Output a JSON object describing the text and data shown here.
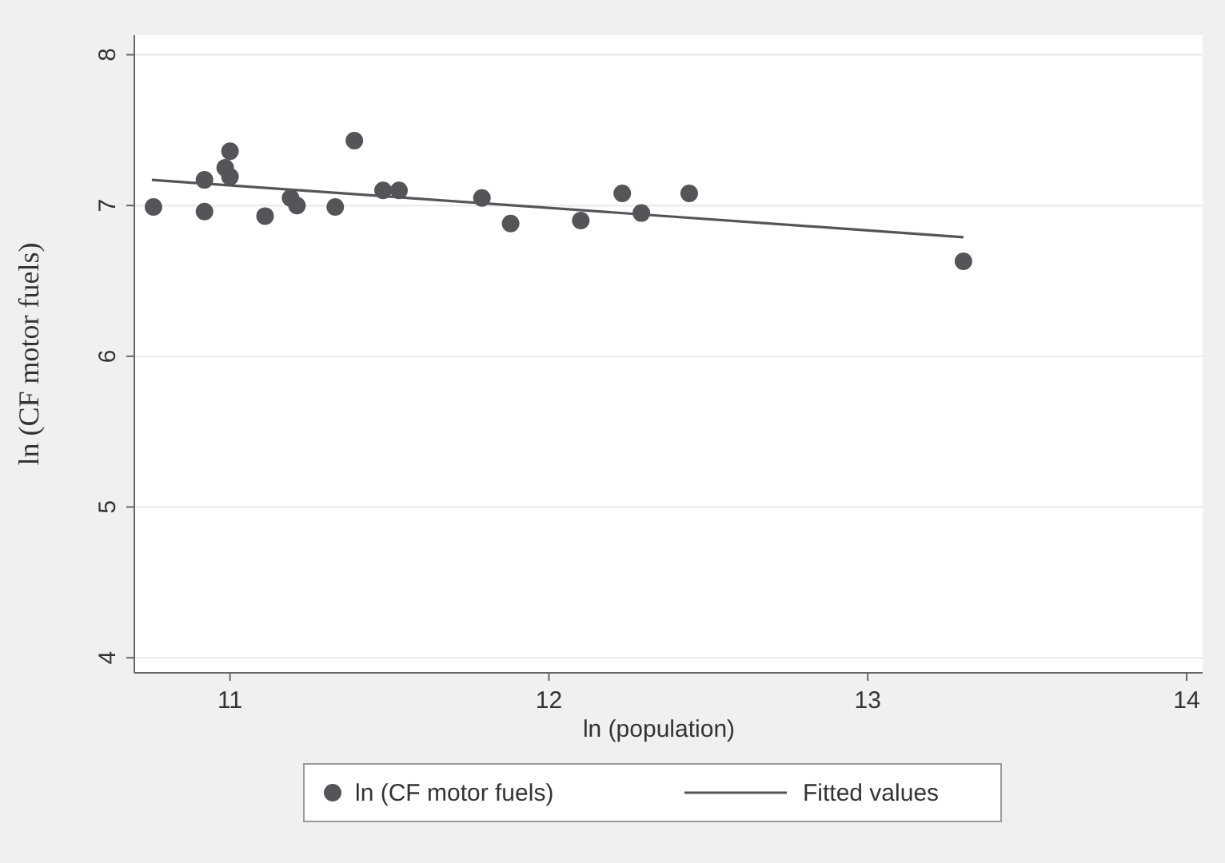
{
  "chart_data": {
    "type": "scatter",
    "xlabel": "ln (population)",
    "ylabel": "ln (CF motor fuels)",
    "xlim": [
      10.7,
      14.05
    ],
    "ylim": [
      3.9,
      8.13
    ],
    "xticks": [
      11,
      12,
      13,
      14
    ],
    "yticks": [
      4,
      5,
      6,
      7,
      8
    ],
    "grid": "y",
    "legend": "bottom",
    "marker": "circle",
    "series": [
      {
        "name": "ln (CF motor fuels)",
        "color": "#555559",
        "x": [
          10.76,
          10.92,
          10.92,
          10.985,
          11.0,
          11.0,
          11.11,
          11.19,
          11.21,
          11.33,
          11.39,
          11.48,
          11.53,
          11.79,
          11.88,
          12.1,
          12.23,
          12.29,
          12.44,
          13.3
        ],
        "values": [
          6.99,
          7.17,
          6.96,
          7.25,
          7.36,
          7.19,
          6.93,
          7.05,
          7.0,
          6.99,
          7.43,
          7.1,
          7.1,
          7.05,
          6.88,
          6.9,
          7.08,
          6.95,
          7.08,
          6.63
        ]
      },
      {
        "name": "Fitted values",
        "type": "line",
        "color": "#555559",
        "marker": "none",
        "line_style": "solid",
        "x": [
          10.755,
          13.3
        ],
        "values": [
          7.17,
          6.79
        ]
      }
    ]
  }
}
